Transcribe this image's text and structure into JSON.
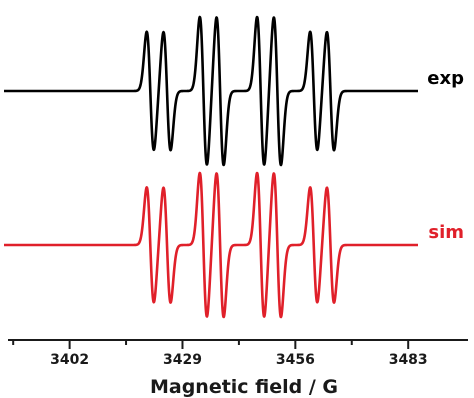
{
  "chart_data": {
    "type": "line",
    "xlabel": "Magnetic field / G",
    "ylabel": "",
    "xlim": [
      3393,
      3493
    ],
    "x_ticks": [
      3402,
      3429,
      3456,
      3483
    ],
    "x_tick_labels": [
      "3402",
      "3429",
      "3456",
      "3483"
    ],
    "grid": false,
    "legend": "none",
    "series": [
      {
        "name": "exp",
        "color": "#000000",
        "label_color": "#000000",
        "peaks": [
          {
            "x": 3421.3,
            "amp": 0.8
          },
          {
            "x": 3425.3,
            "amp": 0.8
          },
          {
            "x": 3434.0,
            "amp": 1.0
          },
          {
            "x": 3438.0,
            "amp": 1.0
          },
          {
            "x": 3447.7,
            "amp": 1.0
          },
          {
            "x": 3451.7,
            "amp": 1.0
          },
          {
            "x": 3460.4,
            "amp": 0.8
          },
          {
            "x": 3464.4,
            "amp": 0.8
          }
        ]
      },
      {
        "name": "sim",
        "color": "#e0202a",
        "label_color": "#e0202a",
        "peaks": [
          {
            "x": 3421.3,
            "amp": 0.8
          },
          {
            "x": 3425.3,
            "amp": 0.8
          },
          {
            "x": 3434.0,
            "amp": 1.0
          },
          {
            "x": 3438.0,
            "amp": 1.0
          },
          {
            "x": 3447.7,
            "amp": 1.0
          },
          {
            "x": 3451.7,
            "amp": 1.0
          },
          {
            "x": 3460.4,
            "amp": 0.8
          },
          {
            "x": 3464.4,
            "amp": 0.8
          }
        ]
      }
    ]
  }
}
